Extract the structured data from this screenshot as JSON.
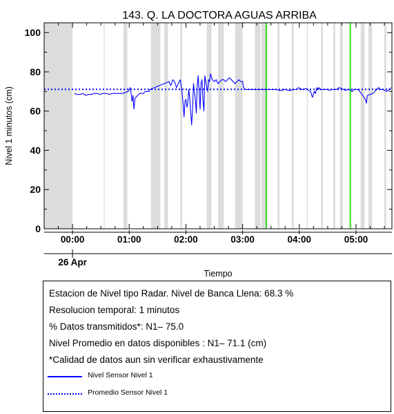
{
  "chart_data": {
    "type": "line",
    "title": "143. Q. LA DOCTORA AGUAS ARRIBA",
    "ylabel": "Nivel 1 minutos (cm)",
    "xlabel": "Tiempo",
    "date_label": "26 Apr",
    "ylim": [
      0,
      105
    ],
    "xlim_minutes": [
      -30,
      338
    ],
    "yticks": [
      0,
      20,
      40,
      60,
      80,
      100
    ],
    "xticks": [
      {
        "t": 0,
        "label": "00:00"
      },
      {
        "t": 60,
        "label": "01:00"
      },
      {
        "t": 120,
        "label": "02:00"
      },
      {
        "t": 180,
        "label": "03:00"
      },
      {
        "t": 240,
        "label": "04:00"
      },
      {
        "t": 300,
        "label": "05:00"
      }
    ],
    "gaps": [
      [
        -30,
        0
      ],
      [
        33,
        34
      ],
      [
        54,
        58
      ],
      [
        83,
        93
      ],
      [
        97,
        101
      ],
      [
        114,
        116
      ],
      [
        142,
        147
      ],
      [
        154,
        160
      ],
      [
        172,
        180
      ],
      [
        193,
        199
      ],
      [
        200,
        206
      ],
      [
        217,
        219
      ],
      [
        232,
        234
      ],
      [
        248,
        249
      ],
      [
        263,
        265
      ],
      [
        276,
        278
      ],
      [
        283,
        286
      ],
      [
        305,
        309
      ],
      [
        313,
        317
      ],
      [
        330,
        332
      ]
    ],
    "markers": [
      205,
      294
    ],
    "mean": 71.1,
    "series": [
      {
        "name": "Nivel Sensor Nivel 1",
        "color": "#0000ff",
        "style": "solid",
        "points": [
          [
            2,
            69
          ],
          [
            5,
            68.5
          ],
          [
            8,
            68.5
          ],
          [
            11,
            69
          ],
          [
            14,
            68
          ],
          [
            17,
            68.5
          ],
          [
            20,
            68.5
          ],
          [
            23,
            69
          ],
          [
            26,
            69
          ],
          [
            29,
            68.5
          ],
          [
            32,
            69
          ],
          [
            36,
            69
          ],
          [
            39,
            68.5
          ],
          [
            42,
            69
          ],
          [
            45,
            69
          ],
          [
            48,
            69
          ],
          [
            51,
            69
          ],
          [
            53,
            69
          ],
          [
            59,
            70
          ],
          [
            61,
            72
          ],
          [
            62,
            69
          ],
          [
            63,
            65
          ],
          [
            64,
            68
          ],
          [
            65,
            61
          ],
          [
            66,
            66
          ],
          [
            67,
            67
          ],
          [
            69,
            68
          ],
          [
            71,
            69
          ],
          [
            73,
            69
          ],
          [
            75,
            69
          ],
          [
            77,
            70
          ],
          [
            79,
            70
          ],
          [
            81,
            70
          ],
          [
            82,
            71
          ],
          [
            102,
            75
          ],
          [
            104,
            73
          ],
          [
            106,
            76
          ],
          [
            108,
            75
          ],
          [
            110,
            72
          ],
          [
            112,
            74
          ],
          [
            114,
            76
          ],
          [
            116,
            69
          ],
          [
            117,
            64
          ],
          [
            118,
            57
          ],
          [
            119,
            65
          ],
          [
            120,
            66
          ],
          [
            121,
            62
          ],
          [
            122,
            64
          ],
          [
            123,
            71
          ],
          [
            124,
            67
          ],
          [
            125,
            60
          ],
          [
            126,
            53
          ],
          [
            127,
            60
          ],
          [
            128,
            74
          ],
          [
            129,
            70
          ],
          [
            130,
            66
          ],
          [
            131,
            59
          ],
          [
            132,
            73
          ],
          [
            133,
            78
          ],
          [
            134,
            70
          ],
          [
            135,
            61
          ],
          [
            136,
            74
          ],
          [
            137,
            76
          ],
          [
            138,
            66
          ],
          [
            139,
            60
          ],
          [
            140,
            78
          ],
          [
            141,
            75
          ],
          [
            142,
            72
          ],
          [
            143,
            70
          ],
          [
            144,
            76
          ],
          [
            145,
            75
          ],
          [
            146,
            79
          ],
          [
            148,
            76
          ],
          [
            150,
            75
          ],
          [
            152,
            76
          ],
          [
            154,
            74
          ],
          [
            156,
            75
          ],
          [
            158,
            76
          ],
          [
            160,
            76
          ],
          [
            162,
            75
          ],
          [
            164,
            76
          ],
          [
            166,
            77
          ],
          [
            168,
            76
          ],
          [
            170,
            75
          ],
          [
            172,
            74
          ],
          [
            174,
            75
          ],
          [
            176,
            76
          ],
          [
            178,
            75
          ],
          [
            180,
            75
          ],
          [
            181,
            72
          ],
          [
            182,
            71
          ],
          [
            184,
            71
          ],
          [
            186,
            71
          ],
          [
            188,
            71
          ],
          [
            190,
            71
          ],
          [
            192,
            71
          ],
          [
            207,
            71
          ],
          [
            209,
            71
          ],
          [
            211,
            71
          ],
          [
            213,
            71
          ],
          [
            215,
            71
          ],
          [
            220,
            70.5
          ],
          [
            222,
            70.5
          ],
          [
            224,
            71
          ],
          [
            226,
            71
          ],
          [
            228,
            70.5
          ],
          [
            230,
            70.5
          ],
          [
            235,
            71
          ],
          [
            237,
            71
          ],
          [
            239,
            72
          ],
          [
            241,
            71.5
          ],
          [
            243,
            71
          ],
          [
            245,
            71
          ],
          [
            247,
            71.5
          ],
          [
            252,
            70
          ],
          [
            253,
            68
          ],
          [
            254,
            67
          ],
          [
            255,
            69
          ],
          [
            256,
            70
          ],
          [
            257,
            69
          ],
          [
            258,
            71
          ],
          [
            259,
            72
          ],
          [
            260,
            71
          ],
          [
            261,
            72
          ],
          [
            262,
            71
          ],
          [
            266,
            71
          ],
          [
            268,
            71
          ],
          [
            270,
            71
          ],
          [
            272,
            70.5
          ],
          [
            274,
            71
          ],
          [
            279,
            71
          ],
          [
            281,
            71.5
          ],
          [
            282,
            72
          ],
          [
            287,
            71
          ],
          [
            289,
            70.5
          ],
          [
            291,
            71
          ],
          [
            293,
            71
          ],
          [
            296,
            70
          ],
          [
            298,
            71
          ],
          [
            300,
            71
          ],
          [
            302,
            71
          ],
          [
            304,
            70
          ],
          [
            310,
            66
          ],
          [
            311,
            64
          ],
          [
            312,
            68
          ],
          [
            318,
            69
          ],
          [
            320,
            70
          ],
          [
            322,
            71
          ],
          [
            324,
            72
          ],
          [
            326,
            71
          ],
          [
            328,
            71
          ],
          [
            333,
            70
          ],
          [
            335,
            71
          ],
          [
            337,
            72
          ]
        ]
      },
      {
        "name": "Promedio Sensor Nivel 1",
        "color": "#0000ff",
        "style": "dotted"
      }
    ]
  },
  "info": {
    "line1": "Estacion de Nivel tipo Radar. Nivel de Banca Llena: 68.3 %",
    "line2": "Resolucion temporal: 1 minutos",
    "line3": "% Datos transmitidos*: N1– 75.0",
    "line4": "Nivel Promedio en datos disponibles : N1– 71.1 (cm)",
    "line5": "*Calidad de datos aun sin verificar exhaustivamente",
    "legend1": "Nivel Sensor Nivel 1",
    "legend2": "Promedio Sensor Nivel 1"
  },
  "colors": {
    "series": "#0000ff",
    "gap": "#dcdcdc",
    "marker": "#33dd22"
  }
}
